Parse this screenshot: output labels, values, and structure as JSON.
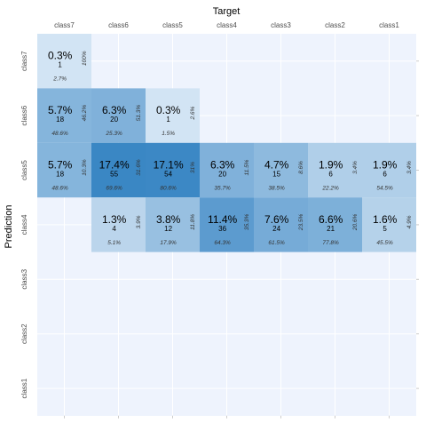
{
  "chart_data": {
    "type": "heatmap",
    "xlabel": "Target",
    "ylabel": "Prediction",
    "x_categories": [
      "class7",
      "class6",
      "class5",
      "class4",
      "class3",
      "class2",
      "class1"
    ],
    "y_categories": [
      "class7",
      "class6",
      "class5",
      "class4",
      "class3",
      "class2",
      "class1"
    ],
    "x_axis_position": "top",
    "grid": true,
    "cells": [
      {
        "target": "class7",
        "prediction": "class7",
        "count": 1,
        "pct": "0.3%",
        "row_pct": "100%",
        "col_pct": "2.7%"
      },
      {
        "target": "class7",
        "prediction": "class6",
        "count": 18,
        "pct": "5.7%",
        "row_pct": "46.2%",
        "col_pct": "48.6%"
      },
      {
        "target": "class6",
        "prediction": "class6",
        "count": 20,
        "pct": "6.3%",
        "row_pct": "51.3%",
        "col_pct": "25.3%"
      },
      {
        "target": "class5",
        "prediction": "class6",
        "count": 1,
        "pct": "0.3%",
        "row_pct": "2.6%",
        "col_pct": "1.5%"
      },
      {
        "target": "class7",
        "prediction": "class5",
        "count": 18,
        "pct": "5.7%",
        "row_pct": "10.3%",
        "col_pct": "48.6%"
      },
      {
        "target": "class6",
        "prediction": "class5",
        "count": 55,
        "pct": "17.4%",
        "row_pct": "31.6%",
        "col_pct": "69.6%"
      },
      {
        "target": "class5",
        "prediction": "class5",
        "count": 54,
        "pct": "17.1%",
        "row_pct": "31%",
        "col_pct": "80.6%"
      },
      {
        "target": "class4",
        "prediction": "class5",
        "count": 20,
        "pct": "6.3%",
        "row_pct": "11.5%",
        "col_pct": "35.7%"
      },
      {
        "target": "class3",
        "prediction": "class5",
        "count": 15,
        "pct": "4.7%",
        "row_pct": "8.6%",
        "col_pct": "38.5%"
      },
      {
        "target": "class2",
        "prediction": "class5",
        "count": 6,
        "pct": "1.9%",
        "row_pct": "3.4%",
        "col_pct": "22.2%"
      },
      {
        "target": "class1",
        "prediction": "class5",
        "count": 6,
        "pct": "1.9%",
        "row_pct": "3.4%",
        "col_pct": "54.5%"
      },
      {
        "target": "class6",
        "prediction": "class4",
        "count": 4,
        "pct": "1.3%",
        "row_pct": "3.9%",
        "col_pct": "5.1%"
      },
      {
        "target": "class5",
        "prediction": "class4",
        "count": 12,
        "pct": "3.8%",
        "row_pct": "11.8%",
        "col_pct": "17.9%"
      },
      {
        "target": "class4",
        "prediction": "class4",
        "count": 36,
        "pct": "11.4%",
        "row_pct": "35.3%",
        "col_pct": "64.3%"
      },
      {
        "target": "class3",
        "prediction": "class4",
        "count": 24,
        "pct": "7.6%",
        "row_pct": "23.5%",
        "col_pct": "61.5%"
      },
      {
        "target": "class2",
        "prediction": "class4",
        "count": 21,
        "pct": "6.6%",
        "row_pct": "20.6%",
        "col_pct": "77.8%"
      },
      {
        "target": "class1",
        "prediction": "class4",
        "count": 5,
        "pct": "1.6%",
        "row_pct": "4.9%",
        "col_pct": "45.5%"
      }
    ]
  },
  "colors": {
    "panel_background": "#eef3fd",
    "low": "#eaf2fb",
    "high": "#3a87c4",
    "text": "#000000",
    "axis_text": "#4d4d4d",
    "grid": "#ffffff"
  }
}
